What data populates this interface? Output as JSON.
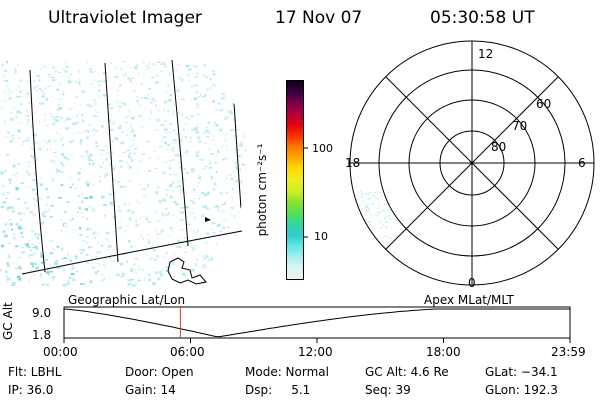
{
  "header": {
    "instrument": "Ultraviolet Imager",
    "date": "17 Nov 07",
    "time": "05:30:58 UT"
  },
  "colorbar": {
    "unit_label": "photon cm⁻²s⁻¹",
    "tick_labels": [
      "100",
      "10"
    ],
    "colors": [
      "#f0f0f0",
      "#d8f4f6",
      "#a8eef0",
      "#5de6e6",
      "#33cccc",
      "#33d699",
      "#55e055",
      "#90e030",
      "#ccee22",
      "#eeee22",
      "#ffd700",
      "#ffaa00",
      "#ff7700",
      "#ff3300",
      "#e00010",
      "#b0003a",
      "#7a004a",
      "#3a0040",
      "#100020"
    ]
  },
  "polar_plot": {
    "mlt_labels": {
      "top": "12",
      "left": "18",
      "right": "6",
      "bottom": "0"
    },
    "lat_labels": [
      "60",
      "70",
      "80"
    ]
  },
  "timeline": {
    "left_title": "Geographic Lat/Lon",
    "right_title": "Apex MLat/MLT",
    "axis_label": "GC Alt",
    "y_ticks": [
      "9.0",
      "1.8"
    ],
    "x_ticks": [
      "00:00",
      "06:00",
      "12:00",
      "18:00",
      "23:59"
    ],
    "curve_color": "#000000",
    "marker_color": "#dd3333",
    "marker_hour": 5.52
  },
  "info": {
    "flt": "Flt: LBHL",
    "door": "Door: Open",
    "mode": "Mode: Normal",
    "gc_alt": "GC Alt: 4.6 Re",
    "glat": "GLat: −34.1",
    "ip": "IP: 36.0",
    "gain": "Gain: 14",
    "dsp": "Dsp:     5.1",
    "seq": "Seq: 39",
    "glon": "GLon: 192.3"
  }
}
